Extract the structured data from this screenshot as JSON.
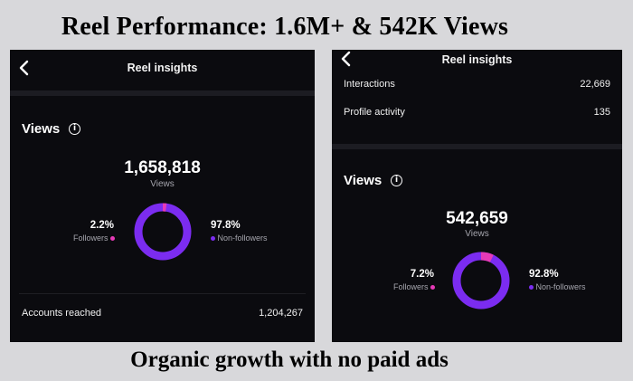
{
  "headline": "Reel Performance: 1.6M+ & 542K Views",
  "footer": "Organic growth with no paid ads",
  "colors": {
    "followers": "#e63ab7",
    "non_followers": "#7b2cf0",
    "panel_bg": "#0b0b0f"
  },
  "left": {
    "title": "Reel insights",
    "back_icon": "chevron-left-icon",
    "section_title": "Views",
    "info_icon": "info-icon",
    "total": "1,658,818",
    "total_label": "Views",
    "followers_pct_label": "2.2%",
    "followers_label": "Followers",
    "non_followers_pct_label": "97.8%",
    "non_followers_label": "Non-followers",
    "followers_fraction": 0.022,
    "stat_label": "Accounts reached",
    "stat_value": "1,204,267"
  },
  "right": {
    "title": "Reel insights",
    "back_icon": "chevron-left-icon",
    "interactions_label": "Interactions",
    "interactions_value": "22,669",
    "profile_label": "Profile activity",
    "profile_value": "135",
    "section_title": "Views",
    "info_icon": "info-icon",
    "total": "542,659",
    "total_label": "Views",
    "followers_pct_label": "7.2%",
    "followers_label": "Followers",
    "non_followers_pct_label": "92.8%",
    "non_followers_label": "Non-followers",
    "followers_fraction": 0.072
  }
}
